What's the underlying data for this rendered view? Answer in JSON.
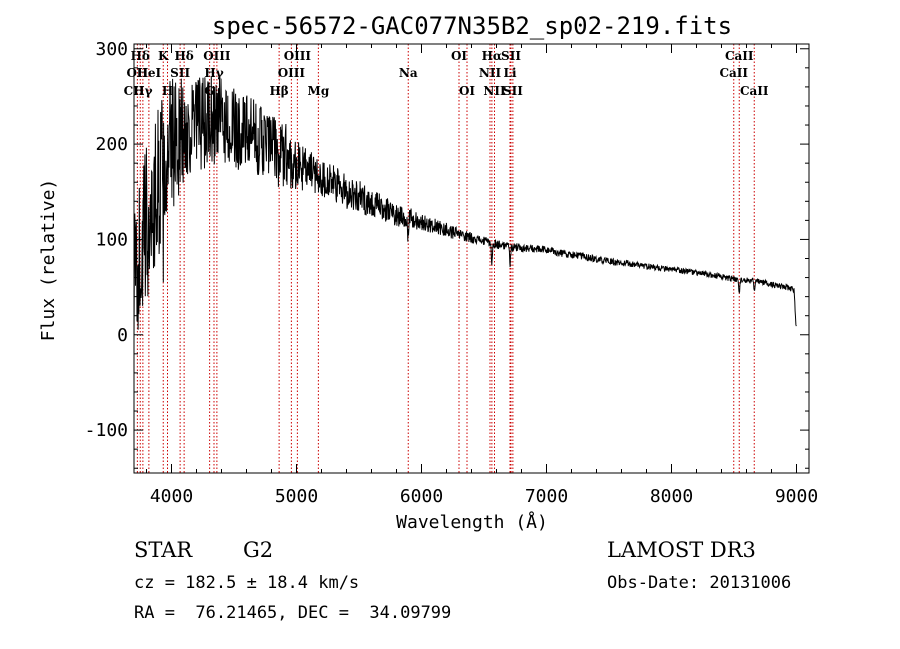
{
  "chart_data": {
    "type": "line",
    "title": "spec-56572-GAC077N35B2_sp02-219.fits",
    "xlabel": "Wavelength (Å)",
    "ylabel": "Flux (relative)",
    "xlim": [
      3700,
      9100
    ],
    "ylim": [
      -145,
      305
    ],
    "xticks": [
      4000,
      5000,
      6000,
      7000,
      8000,
      9000
    ],
    "yticks": [
      -100,
      0,
      100,
      200,
      300
    ],
    "grid": false,
    "series": [
      {
        "name": "Flux",
        "continuum": {
          "wavelength": [
            3700,
            3800,
            3900,
            4000,
            4100,
            4200,
            4300,
            4400,
            4500,
            4600,
            4700,
            4800,
            4900,
            5000,
            5100,
            5200,
            5300,
            5400,
            5500,
            5600,
            5700,
            5800,
            5900,
            6000,
            6100,
            6200,
            6300,
            6400,
            6500,
            6600,
            6700,
            6800,
            6900,
            7000,
            7100,
            7200,
            7300,
            7400,
            7500,
            7600,
            7700,
            7800,
            7900,
            8000,
            8100,
            8200,
            8300,
            8400,
            8500,
            8600,
            8700,
            8800,
            8900,
            8980,
            9000
          ],
          "flux": [
            60,
            110,
            160,
            200,
            215,
            220,
            222,
            225,
            215,
            212,
            205,
            198,
            190,
            178,
            172,
            165,
            158,
            150,
            145,
            138,
            132,
            126,
            123,
            118,
            114,
            110,
            105,
            102,
            98,
            95,
            93,
            91,
            90,
            89,
            86,
            84,
            82,
            79,
            77,
            75,
            74,
            72,
            70,
            68,
            67,
            65,
            63,
            61,
            58,
            57,
            56,
            53,
            50,
            48,
            2
          ]
        },
        "noise_amplitude": {
          "wavelength": [
            3700,
            3800,
            3900,
            4000,
            4100,
            4300,
            4600,
            4900,
            5100,
            5500,
            6000,
            6500,
            7000,
            8000,
            9000
          ],
          "amplitude": [
            70,
            95,
            85,
            70,
            60,
            50,
            40,
            35,
            22,
            17,
            9,
            5,
            4,
            3,
            3
          ]
        },
        "absorption_features": [
          {
            "wavelength": 3934,
            "depth": 40
          },
          {
            "wavelength": 3968,
            "depth": 35
          },
          {
            "wavelength": 4101,
            "depth": 25
          },
          {
            "wavelength": 4861,
            "depth": 20
          },
          {
            "wavelength": 5890,
            "depth": 28
          },
          {
            "wavelength": 6563,
            "depth": 22
          },
          {
            "wavelength": 6708,
            "depth": 18
          },
          {
            "wavelength": 8542,
            "depth": 13
          },
          {
            "wavelength": 8662,
            "depth": 11
          }
        ]
      }
    ],
    "line_markers": [
      {
        "label": "Hδ",
        "wavelength": 3750,
        "row": 0
      },
      {
        "label": "OII",
        "wavelength": 3727,
        "row": 1
      },
      {
        "label": "CII",
        "wavelength": 3700,
        "row": 2
      },
      {
        "label": "HeI",
        "wavelength": 3819,
        "row": 1
      },
      {
        "label": "Hγ",
        "wavelength": 3771,
        "row": 2
      },
      {
        "label": "K",
        "wavelength": 3934,
        "row": 0
      },
      {
        "label": "SII",
        "wavelength": 4069,
        "row": 1
      },
      {
        "label": "H",
        "wavelength": 3968,
        "row": 2
      },
      {
        "label": "Hδ",
        "wavelength": 4101,
        "row": 0
      },
      {
        "label": "OIII",
        "wavelength": 4363,
        "row": 0
      },
      {
        "label": "Hγ",
        "wavelength": 4340,
        "row": 1
      },
      {
        "label": "G",
        "wavelength": 4305,
        "row": 2
      },
      {
        "label": "Hβ",
        "wavelength": 4861,
        "row": 2
      },
      {
        "label": "OIII",
        "wavelength": 5007,
        "row": 0
      },
      {
        "label": "OIII",
        "wavelength": 4959,
        "row": 1
      },
      {
        "label": "Mg",
        "wavelength": 5175,
        "row": 2
      },
      {
        "label": "Na",
        "wavelength": 5894,
        "row": 1
      },
      {
        "label": "OI",
        "wavelength": 6300,
        "row": 0
      },
      {
        "label": "OI",
        "wavelength": 6364,
        "row": 2
      },
      {
        "label": "Hα",
        "wavelength": 6563,
        "row": 0
      },
      {
        "label": "SII",
        "wavelength": 6716,
        "row": 0
      },
      {
        "label": "NII",
        "wavelength": 6548,
        "row": 1
      },
      {
        "label": "Li",
        "wavelength": 6708,
        "row": 1
      },
      {
        "label": "NII",
        "wavelength": 6584,
        "row": 2
      },
      {
        "label": "SII",
        "wavelength": 6731,
        "row": 2
      },
      {
        "label": "CaII",
        "wavelength": 8542,
        "row": 0
      },
      {
        "label": "CaII",
        "wavelength": 8498,
        "row": 1
      },
      {
        "label": "CaII",
        "wavelength": 8662,
        "row": 2
      }
    ]
  },
  "info": {
    "class": "STAR",
    "subclass": "G2",
    "survey": "LAMOST DR3",
    "redshift": "cz = 182.5 ± 18.4 km/s",
    "obs_date": "Obs-Date: 20131006",
    "coords": "RA =  76.21465, DEC =  34.09799"
  },
  "colors": {
    "spectrum": "#000000",
    "marker": "#cc0000",
    "axes": "#000000"
  }
}
